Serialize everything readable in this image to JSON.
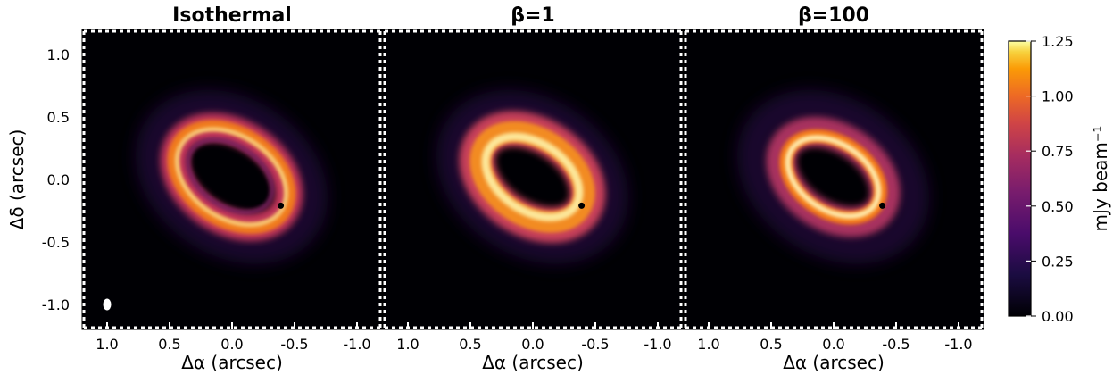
{
  "chart_data": {
    "type": "heatmap",
    "panels": [
      {
        "title": "Isothermal",
        "ring_type": "double",
        "show_beam": true
      },
      {
        "title": "β=1",
        "ring_type": "broad",
        "show_beam": false
      },
      {
        "title": "β=100",
        "ring_type": "narrow",
        "show_beam": false
      }
    ],
    "xlabel": "Δα (arcsec)",
    "ylabel": "Δδ (arcsec)",
    "xlim": [
      1.2,
      -1.2
    ],
    "ylim": [
      -1.2,
      1.2
    ],
    "xticks": [
      1.0,
      0.5,
      0.0,
      -0.5,
      -1.0
    ],
    "xtick_labels": [
      "1.0",
      "0.5",
      "0.0",
      "-0.5",
      "-1.0"
    ],
    "yticks": [
      -1.0,
      -0.5,
      0.0,
      0.5,
      1.0
    ],
    "ytick_labels": [
      "-1.0",
      "-0.5",
      "0.0",
      "0.5",
      "1.0"
    ],
    "planet_position": {
      "dalpha": -0.39,
      "ddelta": -0.21
    },
    "beam_position": {
      "dalpha": 1.0,
      "ddelta": -1.0
    },
    "colorbar": {
      "label": "mJy beam⁻¹",
      "vmin": 0.0,
      "vmax": 1.25,
      "ticks": [
        0.0,
        0.25,
        0.5,
        0.75,
        1.0,
        1.25
      ],
      "tick_labels": [
        "0.00",
        "0.25",
        "0.50",
        "0.75",
        "1.00",
        "1.25"
      ],
      "colormap": "inferno"
    },
    "grid": false
  }
}
